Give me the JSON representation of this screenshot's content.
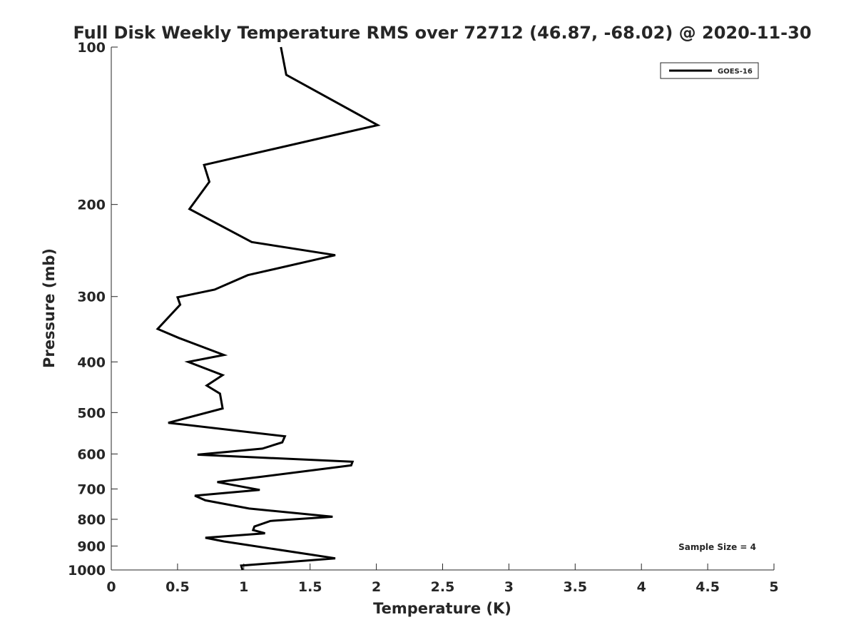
{
  "chart_data": {
    "type": "line",
    "title": "Full Disk Weekly Temperature RMS over 72712 (46.87, -68.02) @ 2020-11-30",
    "xlabel": "Temperature (K)",
    "ylabel": "Pressure (mb)",
    "xlim": [
      0,
      5
    ],
    "ylim": [
      100,
      1000
    ],
    "y_scale": "log",
    "y_reversed": true,
    "xticks": [
      0,
      0.5,
      1,
      1.5,
      2,
      2.5,
      3,
      3.5,
      4,
      4.5,
      5
    ],
    "xtick_labels": [
      "0",
      "0.5",
      "1",
      "1.5",
      "2",
      "2.5",
      "3",
      "3.5",
      "4",
      "4.5",
      "5"
    ],
    "yticks": [
      100,
      200,
      300,
      400,
      500,
      600,
      700,
      800,
      900,
      1000
    ],
    "ytick_labels": [
      "100",
      "200",
      "300",
      "400",
      "500",
      "600",
      "700",
      "800",
      "900",
      "1000"
    ],
    "grid": false,
    "legend_position": "top-right",
    "annotation": "Sample Size = 4",
    "series": [
      {
        "name": "GOES-16",
        "color": "#000000",
        "x": [
          1.28,
          1.32,
          2.01,
          0.7,
          0.74,
          0.59,
          1.06,
          1.69,
          1.03,
          0.78,
          0.5,
          0.52,
          0.35,
          0.51,
          0.85,
          0.58,
          0.84,
          0.72,
          0.82,
          0.84,
          0.43,
          1.31,
          1.29,
          1.14,
          0.65,
          1.82,
          1.81,
          1.12,
          0.8,
          1.12,
          0.63,
          0.71,
          1.04,
          1.67,
          1.2,
          1.08,
          1.07,
          1.16,
          0.71,
          0.85,
          1.52,
          1.69,
          0.98,
          0.99
        ],
        "y": [
          100,
          113,
          141,
          168,
          181,
          204,
          236,
          250,
          273,
          291,
          301,
          311,
          346,
          360,
          388,
          400,
          424,
          444,
          460,
          491,
          523,
          555,
          570,
          586,
          602,
          621,
          631,
          664,
          679,
          703,
          721,
          736,
          763,
          791,
          806,
          826,
          839,
          851,
          868,
          882,
          936,
          950,
          981,
          1000
        ]
      }
    ]
  }
}
